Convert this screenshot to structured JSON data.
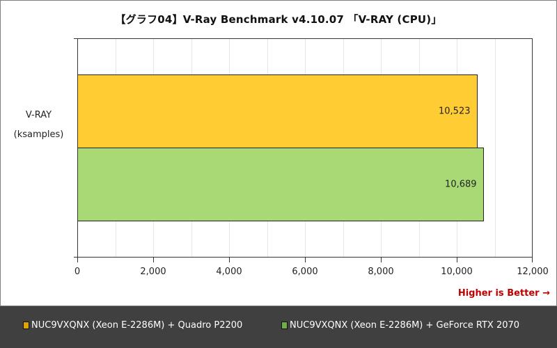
{
  "chart_data": {
    "type": "bar",
    "orientation": "horizontal",
    "title": "【グラフ04】V-Ray Benchmark v4.10.07 「V-RAY (CPU)」",
    "categories": [
      "V-RAY (ksamples)"
    ],
    "category_label_lines": [
      "V-RAY",
      "(ksamples)"
    ],
    "series": [
      {
        "name": "NUC9VXQNX (Xeon E-2286M) + Quadro P2200",
        "values": [
          10523
        ],
        "label": "10,523",
        "color": "#ffcc33"
      },
      {
        "name": "NUC9VXQNX (Xeon E-2286M) + GeForce RTX 2070",
        "values": [
          10689
        ],
        "label": "10,689",
        "color": "#a9d974"
      }
    ],
    "xlim": [
      0,
      12000
    ],
    "xticks": [
      0,
      2000,
      4000,
      6000,
      8000,
      10000,
      12000
    ],
    "xtick_labels": [
      "0",
      "2,000",
      "4,000",
      "6,000",
      "8,000",
      "10,000",
      "12,000"
    ],
    "minor_grid_step": 1000,
    "grid": true,
    "annotation": "Higher is Better →",
    "legend_position": "bottom"
  },
  "legend_swatch_colors": [
    "#e0a400",
    "#70ad47"
  ]
}
